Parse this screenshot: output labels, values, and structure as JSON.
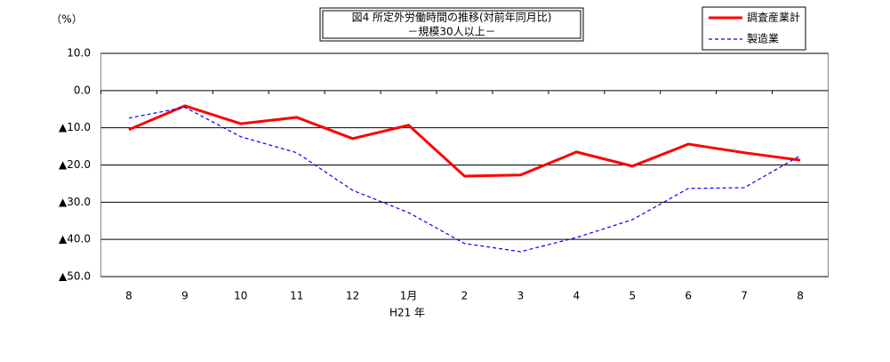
{
  "chart_data": {
    "type": "line",
    "title": "図4 所定外労働時間の推移(対前年同月比)",
    "subtitle": "－規模30人以上－",
    "y_label": "（%）",
    "annotation": "H21 年",
    "categories": [
      "8",
      "9",
      "10",
      "11",
      "12",
      "1月",
      "2",
      "3",
      "4",
      "5",
      "6",
      "7",
      "8"
    ],
    "series": [
      {
        "name": "調査産業計",
        "color": "#ff0000",
        "dash": "solid",
        "values": [
          -10.5,
          -4.1,
          -8.9,
          -7.2,
          -12.9,
          -9.3,
          -23.0,
          -22.7,
          -16.5,
          -20.3,
          -14.4,
          -16.7,
          -18.7
        ]
      },
      {
        "name": "製造業",
        "color": "#0000ff",
        "dash": "dashed",
        "values": [
          -7.4,
          -4.5,
          -12.4,
          -16.7,
          -26.8,
          -32.8,
          -41.1,
          -43.3,
          -39.5,
          -34.7,
          -26.3,
          -26.1,
          -17.5
        ]
      }
    ],
    "ylim": [
      -50,
      10
    ],
    "yticks": [
      {
        "value": 10,
        "label": "10.0"
      },
      {
        "value": 0,
        "label": "0.0"
      },
      {
        "value": -10,
        "label": "▲10.0"
      },
      {
        "value": -20,
        "label": "▲20.0"
      },
      {
        "value": -30,
        "label": "▲30.0"
      },
      {
        "value": -40,
        "label": "▲40.0"
      },
      {
        "value": -50,
        "label": "▲50.0"
      }
    ],
    "grid": true,
    "legend": "top-right"
  }
}
